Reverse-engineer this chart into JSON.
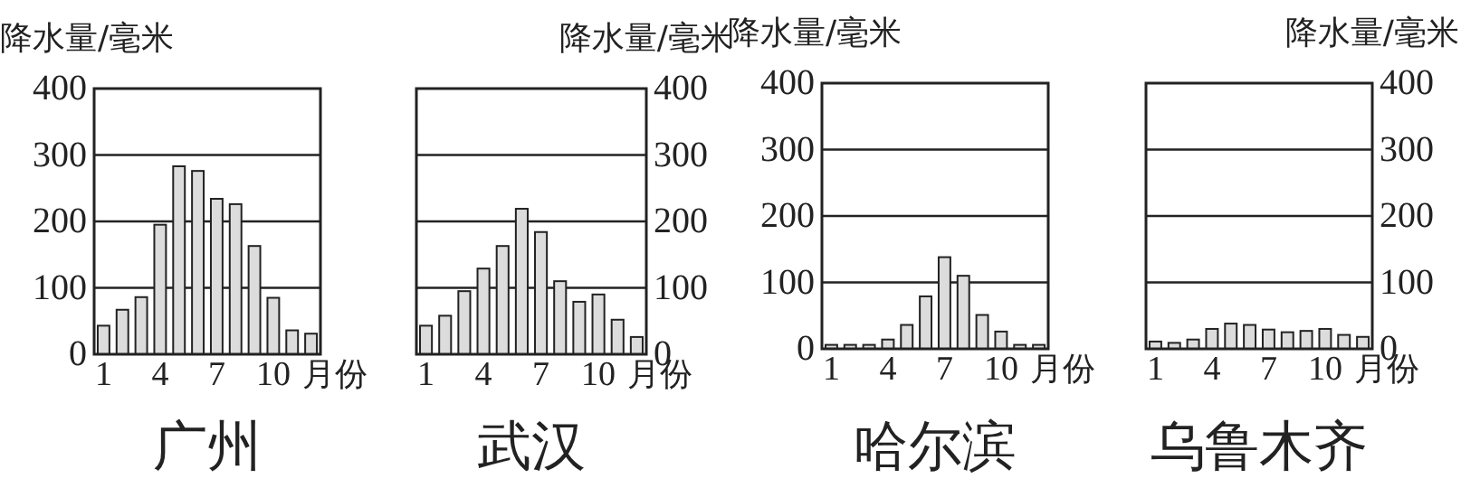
{
  "chart_data": [
    {
      "type": "bar",
      "title": "广州",
      "ylabel": "降水量/毫米",
      "xlabel": "月份",
      "categories": [
        "1",
        null,
        null,
        "4",
        null,
        null,
        "7",
        null,
        null,
        "10",
        null,
        null
      ],
      "color": "#dcdcdc",
      "ylim": [
        0,
        400
      ],
      "yticks": [
        0,
        100,
        200,
        300,
        400
      ],
      "grid": "y",
      "values": [
        43,
        67,
        86,
        195,
        283,
        276,
        234,
        226,
        163,
        85,
        36,
        31
      ]
    },
    {
      "type": "bar",
      "title": "武汉",
      "ylabel": "降水量/毫米",
      "xlabel": "月份",
      "categories": [
        "1",
        null,
        null,
        "4",
        null,
        null,
        "7",
        null,
        null,
        "10",
        null,
        null
      ],
      "color": "#dcdcdc",
      "ylim": [
        0,
        400
      ],
      "yticks": [
        0,
        100,
        200,
        300,
        400
      ],
      "grid": "y",
      "values": [
        43,
        58,
        95,
        129,
        163,
        219,
        184,
        110,
        79,
        90,
        52,
        26
      ]
    },
    {
      "type": "bar",
      "title": "哈尔滨",
      "ylabel": "降水量/毫米",
      "xlabel": "月份",
      "categories": [
        "1",
        null,
        null,
        "4",
        null,
        null,
        "7",
        null,
        null,
        "10",
        null,
        null
      ],
      "color": "#dcdcdc",
      "ylim": [
        0,
        400
      ],
      "yticks": [
        0,
        100,
        200,
        300,
        400
      ],
      "grid": "y",
      "values": [
        6,
        6,
        6,
        14,
        36,
        79,
        138,
        110,
        51,
        26,
        6,
        6
      ]
    },
    {
      "type": "bar",
      "title": "乌鲁木齐",
      "ylabel": "降水量/毫米",
      "xlabel": "月份",
      "categories": [
        "1",
        null,
        null,
        "4",
        null,
        null,
        "7",
        null,
        null,
        "10",
        null,
        null
      ],
      "color": "#dcdcdc",
      "ylim": [
        0,
        400
      ],
      "yticks": [
        0,
        100,
        200,
        300,
        400
      ],
      "grid": "y",
      "values": [
        11,
        9,
        14,
        30,
        38,
        36,
        29,
        25,
        27,
        30,
        21,
        18
      ]
    }
  ]
}
